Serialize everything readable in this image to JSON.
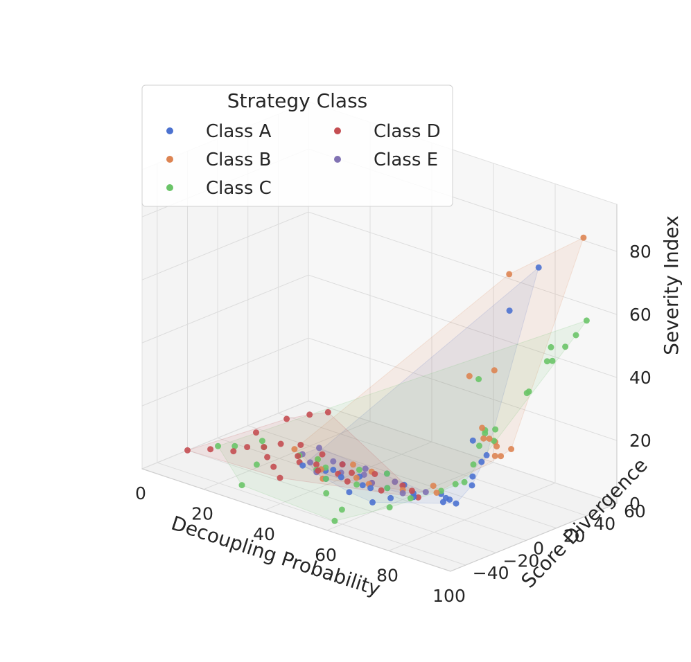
{
  "chart_data": {
    "type": "scatter",
    "projection": "3d",
    "xlabel": "Decoupling Probability",
    "ylabel": "Score Divergence",
    "zlabel": "Severity Index",
    "xlim": [
      0,
      100
    ],
    "ylim": [
      -50,
      60
    ],
    "zlim": [
      0,
      95
    ],
    "xticks": [
      "0",
      "20",
      "40",
      "60",
      "80",
      "100"
    ],
    "yticks": [
      "−40",
      "−20",
      "0",
      "20",
      "40",
      "60"
    ],
    "zticks": [
      "0",
      "20",
      "40",
      "60",
      "80"
    ],
    "grid": true,
    "legend": {
      "title": "Strategy Class",
      "placement": "upper-left",
      "columns": 2,
      "entries": [
        "Class A",
        "Class B",
        "Class C",
        "Class D",
        "Class E"
      ]
    },
    "series": [
      {
        "name": "Class A",
        "color": "#4c72d0",
        "points": [
          [
            30,
            -5,
            2
          ],
          [
            35,
            0,
            1
          ],
          [
            38,
            5,
            3
          ],
          [
            40,
            -10,
            2
          ],
          [
            45,
            2,
            2
          ],
          [
            48,
            -2,
            1
          ],
          [
            50,
            10,
            3
          ],
          [
            52,
            -5,
            2
          ],
          [
            55,
            0,
            2
          ],
          [
            58,
            5,
            3
          ],
          [
            60,
            -8,
            2
          ],
          [
            62,
            3,
            2
          ],
          [
            65,
            -3,
            3
          ],
          [
            70,
            5,
            4
          ],
          [
            74,
            0,
            5
          ],
          [
            78,
            -10,
            7
          ],
          [
            80,
            5,
            10
          ],
          [
            85,
            -20,
            12
          ],
          [
            88,
            -5,
            22
          ],
          [
            90,
            -15,
            20
          ],
          [
            92,
            -30,
            15
          ],
          [
            95,
            -25,
            35
          ],
          [
            97,
            -20,
            30
          ],
          [
            75,
            40,
            57
          ],
          [
            82,
            45,
            72
          ],
          [
            60,
            -20,
            3
          ],
          [
            50,
            -15,
            2
          ],
          [
            42,
            -4,
            2
          ],
          [
            36,
            3,
            1
          ]
        ]
      },
      {
        "name": "Class B",
        "color": "#dd8452",
        "points": [
          [
            20,
            10,
            1
          ],
          [
            30,
            5,
            2
          ],
          [
            35,
            -3,
            2
          ],
          [
            40,
            8,
            3
          ],
          [
            45,
            0,
            2
          ],
          [
            50,
            -2,
            2
          ],
          [
            55,
            5,
            3
          ],
          [
            60,
            0,
            3
          ],
          [
            65,
            10,
            4
          ],
          [
            70,
            2,
            5
          ],
          [
            75,
            30,
            40
          ],
          [
            78,
            35,
            15
          ],
          [
            82,
            20,
            17
          ],
          [
            85,
            10,
            20
          ],
          [
            88,
            5,
            25
          ],
          [
            90,
            0,
            28
          ],
          [
            93,
            -10,
            32
          ],
          [
            96,
            -20,
            35
          ],
          [
            98,
            -25,
            40
          ],
          [
            99,
            40,
            88
          ],
          [
            70,
            50,
            65
          ],
          [
            62,
            40,
            32
          ],
          [
            45,
            10,
            2
          ],
          [
            38,
            -8,
            1
          ]
        ]
      },
      {
        "name": "Class C",
        "color": "#6ac468",
        "points": [
          [
            5,
            -10,
            1
          ],
          [
            8,
            -5,
            1
          ],
          [
            12,
            5,
            2
          ],
          [
            15,
            0,
            2
          ],
          [
            20,
            -15,
            1
          ],
          [
            25,
            -35,
            0
          ],
          [
            30,
            5,
            2
          ],
          [
            35,
            0,
            2
          ],
          [
            40,
            -10,
            2
          ],
          [
            45,
            -20,
            1
          ],
          [
            50,
            10,
            3
          ],
          [
            55,
            0,
            2
          ],
          [
            60,
            -45,
            2
          ],
          [
            65,
            -5,
            3
          ],
          [
            70,
            5,
            5
          ],
          [
            72,
            30,
            20
          ],
          [
            75,
            20,
            18
          ],
          [
            78,
            10,
            15
          ],
          [
            80,
            0,
            12
          ],
          [
            82,
            -10,
            14
          ],
          [
            84,
            50,
            42
          ],
          [
            86,
            45,
            48
          ],
          [
            88,
            25,
            38
          ],
          [
            90,
            0,
            32
          ],
          [
            92,
            -5,
            30
          ],
          [
            94,
            -15,
            35
          ],
          [
            96,
            10,
            44
          ],
          [
            97,
            20,
            52
          ],
          [
            98,
            30,
            55
          ],
          [
            99,
            35,
            58
          ],
          [
            100,
            40,
            62
          ],
          [
            65,
            40,
            32
          ],
          [
            55,
            -30,
            1
          ],
          [
            42,
            8,
            2
          ],
          [
            33,
            -2,
            1
          ],
          [
            25,
            3,
            2
          ],
          [
            48,
            -6,
            2
          ],
          [
            68,
            -25,
            5
          ]
        ]
      },
      {
        "name": "Class D",
        "color": "#c44e52",
        "points": [
          [
            0,
            -20,
            0
          ],
          [
            5,
            -15,
            1
          ],
          [
            10,
            -10,
            1
          ],
          [
            12,
            -5,
            2
          ],
          [
            15,
            0,
            2
          ],
          [
            18,
            5,
            3
          ],
          [
            20,
            -8,
            2
          ],
          [
            22,
            10,
            3
          ],
          [
            25,
            2,
            2
          ],
          [
            28,
            -3,
            2
          ],
          [
            30,
            8,
            3
          ],
          [
            32,
            0,
            2
          ],
          [
            35,
            -5,
            2
          ],
          [
            38,
            5,
            3
          ],
          [
            40,
            -2,
            2
          ],
          [
            42,
            3,
            2
          ],
          [
            45,
            -6,
            2
          ],
          [
            48,
            6,
            3
          ],
          [
            50,
            0,
            2
          ],
          [
            55,
            -4,
            2
          ],
          [
            58,
            4,
            3
          ],
          [
            62,
            2,
            3
          ],
          [
            66,
            -2,
            3
          ],
          [
            20,
            20,
            10
          ],
          [
            25,
            22,
            12
          ],
          [
            15,
            15,
            8
          ],
          [
            30,
            -20,
            1
          ],
          [
            10,
            5,
            4
          ],
          [
            24,
            -12,
            1
          ]
        ]
      },
      {
        "name": "Class E",
        "color": "#8172b3",
        "points": [
          [
            25,
            5,
            2
          ],
          [
            30,
            0,
            2
          ],
          [
            35,
            5,
            3
          ],
          [
            40,
            0,
            2
          ],
          [
            45,
            5,
            2
          ],
          [
            50,
            0,
            2
          ],
          [
            55,
            5,
            3
          ],
          [
            60,
            0,
            2
          ],
          [
            65,
            5,
            3
          ],
          [
            28,
            10,
            4
          ],
          [
            34,
            -4,
            1
          ],
          [
            44,
            8,
            3
          ]
        ]
      }
    ]
  }
}
